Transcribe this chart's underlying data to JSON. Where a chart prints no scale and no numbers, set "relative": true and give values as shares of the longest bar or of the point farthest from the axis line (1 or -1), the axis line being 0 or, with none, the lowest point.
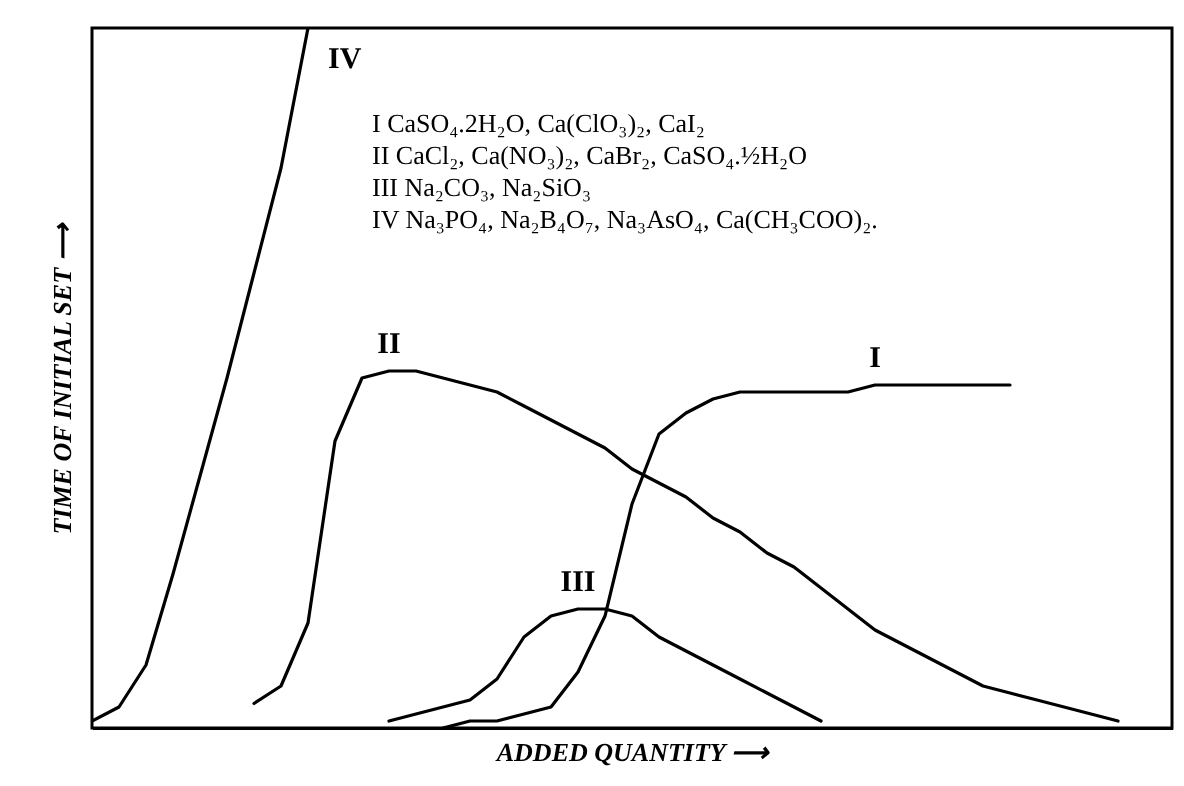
{
  "chart_data": {
    "type": "line",
    "relative": true,
    "xlabel": "ADDED QUANTITY ⟶",
    "ylabel": "TIME OF INITIAL SET ⟶",
    "marker": "none",
    "line_style": "solid",
    "annotations": [
      "I CaSO₄.2H₂O, Ca(ClO₃)₂, CaI₂",
      "II CaCl₂, Ca(NO₃)₂, CaBr₂, CaSO₄.½H₂O",
      "III Na₂CO₃, Na₂SiO₃",
      "IV Na₃PO₄, Na₂B₄O₇, Na₃AsO₄, Ca(CH₃COO)₂."
    ],
    "categories": [
      null,
      null,
      null,
      null,
      null,
      null,
      null,
      null,
      null,
      null,
      null,
      null,
      null,
      null,
      null,
      null,
      null,
      null,
      null,
      null,
      null,
      null,
      null,
      null,
      null,
      null,
      null,
      null,
      null,
      null,
      null,
      null,
      null,
      null,
      null,
      null,
      null,
      null,
      null,
      null,
      null
    ],
    "series": [
      {
        "name": "I",
        "color": "#000000",
        "values": [
          null,
          null,
          null,
          null,
          null,
          null,
          null,
          null,
          null,
          null,
          null,
          null,
          null,
          0.0,
          0.01,
          0.01,
          0.02,
          0.03,
          0.08,
          0.16,
          0.32,
          0.42,
          0.45,
          0.47,
          0.48,
          0.48,
          0.48,
          0.48,
          0.48,
          0.49,
          0.49,
          0.49,
          0.49,
          0.49,
          0.49,
          null,
          null,
          null,
          null,
          null,
          null
        ]
      },
      {
        "name": "II",
        "color": "#000000",
        "values": [
          null,
          null,
          null,
          null,
          null,
          null,
          0.035,
          0.06,
          0.15,
          0.41,
          0.5,
          0.51,
          0.51,
          0.5,
          0.49,
          0.48,
          0.46,
          0.44,
          0.42,
          0.4,
          0.37,
          0.35,
          0.33,
          0.3,
          0.28,
          0.25,
          0.23,
          0.2,
          0.17,
          0.14,
          0.12,
          0.1,
          0.08,
          0.06,
          0.05,
          0.04,
          0.03,
          0.02,
          0.01,
          null,
          null
        ]
      },
      {
        "name": "III",
        "color": "#000000",
        "values": [
          null,
          null,
          null,
          null,
          null,
          null,
          null,
          null,
          null,
          null,
          null,
          0.01,
          0.02,
          0.03,
          0.04,
          0.07,
          0.13,
          0.16,
          0.17,
          0.17,
          0.16,
          0.13,
          0.11,
          0.09,
          0.07,
          0.05,
          0.03,
          0.01,
          null,
          null,
          null,
          null,
          null,
          null,
          null,
          null,
          null,
          null,
          null,
          null,
          null
        ]
      },
      {
        "name": "IV",
        "color": "#000000",
        "values": [
          0.01,
          0.03,
          0.09,
          0.22,
          0.36,
          0.5,
          0.65,
          0.8,
          1.0,
          null,
          null,
          null,
          null,
          null,
          null,
          null,
          null,
          null,
          null,
          null,
          null,
          null,
          null,
          null,
          null,
          null,
          null,
          null,
          null,
          null,
          null,
          null,
          null,
          null,
          null,
          null,
          null,
          null,
          null,
          null,
          null
        ]
      }
    ]
  }
}
